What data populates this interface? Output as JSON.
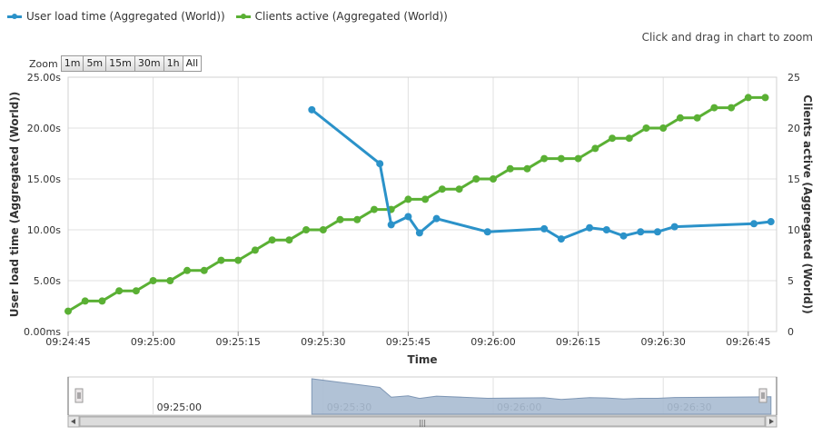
{
  "legend": [
    {
      "label": "User load time (Aggregated (World))",
      "color": "#2b92c9"
    },
    {
      "label": "Clients active (Aggregated (World))",
      "color": "#5ab034"
    }
  ],
  "zoom_hint": "Click and drag in chart to zoom",
  "zoom": {
    "label": "Zoom",
    "buttons": [
      "1m",
      "5m",
      "15m",
      "30m",
      "1h",
      "All"
    ],
    "active": "All"
  },
  "chart_data": {
    "type": "line",
    "xlabel": "Time",
    "x_ticks": [
      "09:24:45",
      "09:25:00",
      "09:25:15",
      "09:25:30",
      "09:25:45",
      "09:26:00",
      "09:26:15",
      "09:26:30",
      "09:26:45"
    ],
    "y_left": {
      "label": "User load time (Aggregated (World))",
      "ticks": [
        "0.00ms",
        "5.00s",
        "10.00s",
        "15.00s",
        "20.00s",
        "25.00s"
      ],
      "range": [
        0,
        25
      ]
    },
    "y_right": {
      "label": "Clients active (Aggregated (World))",
      "ticks": [
        "0",
        "5",
        "10",
        "15",
        "20",
        "25"
      ],
      "range": [
        0,
        25
      ]
    },
    "x_range": [
      "09:24:45",
      "09:26:50"
    ],
    "grid": true,
    "series": [
      {
        "name": "User load time (Aggregated (World))",
        "axis": "left",
        "unit": "s",
        "color": "#2b92c9",
        "points": [
          [
            "09:25:28",
            21.8
          ],
          [
            "09:25:40",
            16.5
          ],
          [
            "09:25:42",
            10.5
          ],
          [
            "09:25:45",
            11.3
          ],
          [
            "09:25:47",
            9.7
          ],
          [
            "09:25:50",
            11.1
          ],
          [
            "09:25:59",
            9.8
          ],
          [
            "09:26:09",
            10.1
          ],
          [
            "09:26:12",
            9.1
          ],
          [
            "09:26:17",
            10.2
          ],
          [
            "09:26:20",
            10.0
          ],
          [
            "09:26:23",
            9.4
          ],
          [
            "09:26:26",
            9.8
          ],
          [
            "09:26:29",
            9.8
          ],
          [
            "09:26:32",
            10.3
          ],
          [
            "09:26:46",
            10.6
          ],
          [
            "09:26:49",
            10.8
          ]
        ]
      },
      {
        "name": "Clients active (Aggregated (World))",
        "axis": "right",
        "color": "#5ab034",
        "points": [
          [
            "09:24:45",
            2
          ],
          [
            "09:24:48",
            3
          ],
          [
            "09:24:51",
            3
          ],
          [
            "09:24:54",
            4
          ],
          [
            "09:24:57",
            4
          ],
          [
            "09:25:00",
            5
          ],
          [
            "09:25:03",
            5
          ],
          [
            "09:25:06",
            6
          ],
          [
            "09:25:09",
            6
          ],
          [
            "09:25:12",
            7
          ],
          [
            "09:25:15",
            7
          ],
          [
            "09:25:18",
            8
          ],
          [
            "09:25:21",
            9
          ],
          [
            "09:25:24",
            9
          ],
          [
            "09:25:27",
            10
          ],
          [
            "09:25:30",
            10
          ],
          [
            "09:25:33",
            11
          ],
          [
            "09:25:36",
            11
          ],
          [
            "09:25:39",
            12
          ],
          [
            "09:25:42",
            12
          ],
          [
            "09:25:45",
            13
          ],
          [
            "09:25:48",
            13
          ],
          [
            "09:25:51",
            14
          ],
          [
            "09:25:54",
            14
          ],
          [
            "09:25:57",
            15
          ],
          [
            "09:26:00",
            15
          ],
          [
            "09:26:03",
            16
          ],
          [
            "09:26:06",
            16
          ],
          [
            "09:26:09",
            17
          ],
          [
            "09:26:12",
            17
          ],
          [
            "09:26:15",
            17
          ],
          [
            "09:26:18",
            18
          ],
          [
            "09:26:21",
            19
          ],
          [
            "09:26:24",
            19
          ],
          [
            "09:26:27",
            20
          ],
          [
            "09:26:30",
            20
          ],
          [
            "09:26:33",
            21
          ],
          [
            "09:26:36",
            21
          ],
          [
            "09:26:39",
            22
          ],
          [
            "09:26:42",
            22
          ],
          [
            "09:26:45",
            23
          ],
          [
            "09:26:48",
            23
          ]
        ]
      }
    ]
  },
  "navigator": {
    "ticks": [
      "09:25:00",
      "09:25:30",
      "09:26:00",
      "09:26:30"
    ],
    "selection": [
      "09:24:45",
      "09:26:50"
    ],
    "area_color": "#a8bbd1",
    "scrollbar_grip": "|||"
  }
}
